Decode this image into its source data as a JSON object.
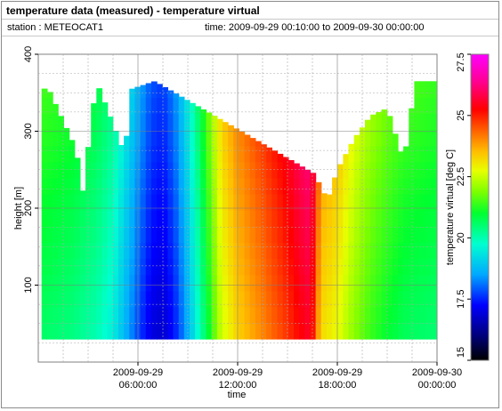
{
  "header": {
    "title": "temperature data (measured) - temperature virtual",
    "station": "station : METEOCAT1",
    "time_range": "time: 2009-09-29 00:10:00 to 2009-09-30 00:00:00"
  },
  "chart_data": {
    "type": "heatmap",
    "title": "temperature data (measured) - temperature virtual",
    "xlabel": "time",
    "ylabel": "height [m]",
    "colorbar_label": "temperature virtual [deg C]",
    "x_ticks": [
      {
        "hours": 6,
        "line1": "2009-09-29",
        "line2": "06:00:00"
      },
      {
        "hours": 12,
        "line1": "2009-09-29",
        "line2": "12:00:00"
      },
      {
        "hours": 18,
        "line1": "2009-09-29",
        "line2": "18:00:00"
      },
      {
        "hours": 24,
        "line1": "2009-09-30",
        "line2": "00:00:00"
      }
    ],
    "xlim_hours": [
      0,
      24
    ],
    "ylim": [
      0,
      400
    ],
    "y_ticks": [
      100,
      200,
      300,
      400
    ],
    "colorbar_ticks": [
      15,
      17.5,
      20,
      22.5,
      25,
      27.5
    ],
    "colorbar_range": [
      15,
      27.5
    ],
    "grid": true,
    "height_range_m": [
      30,
      365
    ],
    "temperature_profile_by_hour": [
      {
        "hour": 0.2,
        "temp": 20.6
      },
      {
        "hour": 2.0,
        "temp": 20.4
      },
      {
        "hour": 3.5,
        "temp": 20.0
      },
      {
        "hour": 4.5,
        "temp": 19.5
      },
      {
        "hour": 5.3,
        "temp": 18.6
      },
      {
        "hour": 6.0,
        "temp": 17.8
      },
      {
        "hour": 6.8,
        "temp": 17.0
      },
      {
        "hour": 7.5,
        "temp": 16.8
      },
      {
        "hour": 8.2,
        "temp": 17.4
      },
      {
        "hour": 9.0,
        "temp": 18.6
      },
      {
        "hour": 10.0,
        "temp": 20.5
      },
      {
        "hour": 11.0,
        "temp": 22.5
      },
      {
        "hour": 12.0,
        "temp": 23.3
      },
      {
        "hour": 13.0,
        "temp": 23.8
      },
      {
        "hour": 14.0,
        "temp": 24.3
      },
      {
        "hour": 15.0,
        "temp": 24.8
      },
      {
        "hour": 15.8,
        "temp": 25.3
      },
      {
        "hour": 16.4,
        "temp": 25.6
      },
      {
        "hour": 17.0,
        "temp": 23.2
      },
      {
        "hour": 18.0,
        "temp": 22.8
      },
      {
        "hour": 19.0,
        "temp": 22.0
      },
      {
        "hour": 20.0,
        "temp": 21.4
      },
      {
        "hour": 21.0,
        "temp": 21.0
      },
      {
        "hour": 22.0,
        "temp": 20.7
      },
      {
        "hour": 23.9,
        "temp": 20.5
      }
    ],
    "upper_boundary_by_hour": [
      {
        "hour": 0.0,
        "top": 255
      },
      {
        "hour": 0.4,
        "top": 365
      },
      {
        "hour": 2.3,
        "top": 275
      },
      {
        "hour": 2.6,
        "top": 210
      },
      {
        "hour": 3.5,
        "top": 365
      },
      {
        "hour": 5.2,
        "top": 270
      },
      {
        "hour": 5.6,
        "top": 355
      },
      {
        "hour": 7.0,
        "top": 365
      },
      {
        "hour": 16.6,
        "top": 245
      },
      {
        "hour": 17.4,
        "top": 210
      },
      {
        "hour": 18.0,
        "top": 250
      },
      {
        "hour": 19.0,
        "top": 290
      },
      {
        "hour": 20.0,
        "top": 320
      },
      {
        "hour": 21.0,
        "top": 330
      },
      {
        "hour": 22.0,
        "top": 260
      },
      {
        "hour": 22.7,
        "top": 365
      },
      {
        "hour": 24.0,
        "top": 365
      }
    ]
  }
}
